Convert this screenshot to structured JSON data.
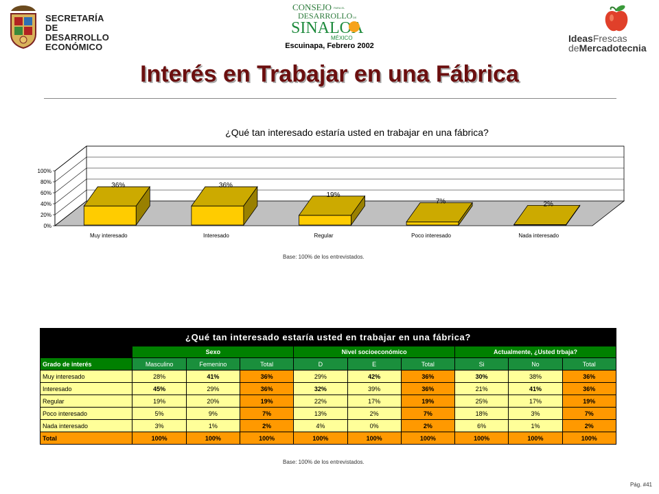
{
  "header": {
    "sde_logo_text": [
      "SECRETARÍA",
      "DE DESARROLLO",
      "ECONÓMICO"
    ],
    "sinaloa_logo_text": [
      "CONSEJO",
      "PARA EL",
      "DESARROLLO",
      "DE",
      "SINALOA",
      "MÉXICO"
    ],
    "ideas_logo_text": {
      "a": "Ideas",
      "b": "Frescas",
      "c": "de",
      "d": "Mercadotecnia"
    },
    "city_date": "Escuinapa, Febrero 2002"
  },
  "page_title": "Interés en Trabajar en una Fábrica",
  "chart_data": {
    "type": "bar",
    "title": "¿Qué tan interesado estaría usted en trabajar en una fábrica?",
    "categories": [
      "Muy interesado",
      "Interesado",
      "Regular",
      "Poco interesado",
      "Nada interesado"
    ],
    "values": [
      36,
      36,
      19,
      7,
      2
    ],
    "data_labels": [
      "36%",
      "36%",
      "19%",
      "7%",
      "2%"
    ],
    "y_ticks": [
      "0%",
      "20%",
      "40%",
      "60%",
      "80%",
      "100%"
    ],
    "ylim": [
      0,
      100
    ],
    "grid": true,
    "style": "3d",
    "bar_color": "#ffcc00",
    "floor_color": "#c0c0c0"
  },
  "base_note_1": "Base:  100% de los entrevistados.",
  "table": {
    "question": "¿Qué tan interesado estaría usted en trabajar en una fábrica?",
    "groups": [
      "Sexo",
      "Nivel socioeconómico",
      "Actualmente, ¿Usted trbaja?"
    ],
    "row_header": "Grado de interés",
    "columns": [
      "Masculino",
      "Femenino",
      "Total",
      "D",
      "E",
      "Total",
      "Si",
      "No",
      "Total"
    ],
    "rows": [
      {
        "label": "Muy interesado",
        "values": [
          "28%",
          "41%",
          "36%",
          "29%",
          "42%",
          "36%",
          "30%",
          "38%",
          "36%"
        ]
      },
      {
        "label": "Interesado",
        "values": [
          "45%",
          "29%",
          "36%",
          "32%",
          "39%",
          "36%",
          "21%",
          "41%",
          "36%"
        ]
      },
      {
        "label": "Regular",
        "values": [
          "19%",
          "20%",
          "19%",
          "22%",
          "17%",
          "19%",
          "25%",
          "17%",
          "19%"
        ]
      },
      {
        "label": "Poco interesado",
        "values": [
          "5%",
          "9%",
          "7%",
          "13%",
          "2%",
          "7%",
          "18%",
          "3%",
          "7%"
        ]
      },
      {
        "label": "Nada interesado",
        "values": [
          "3%",
          "1%",
          "2%",
          "4%",
          "0%",
          "2%",
          "6%",
          "1%",
          "2%"
        ]
      },
      {
        "label": "Total",
        "values": [
          "100%",
          "100%",
          "100%",
          "100%",
          "100%",
          "100%",
          "100%",
          "100%",
          "100%"
        ]
      }
    ],
    "colors": {
      "header_black": "#000000",
      "group_green": "#008000",
      "cell_yellow": "#ffff99",
      "total_orange": "#ff9900"
    }
  },
  "base_note_2": "Base:  100% de los entrevistados.",
  "page_number": "Pág. #41"
}
